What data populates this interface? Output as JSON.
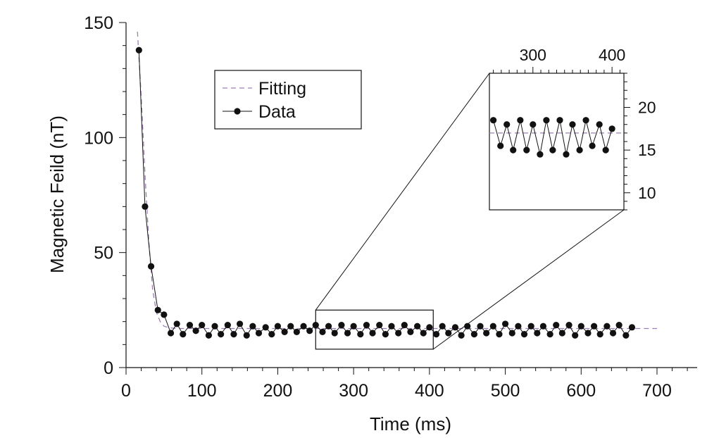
{
  "chart_data": [
    {
      "type": "line",
      "xlabel": "Time (ms)",
      "ylabel": "Magnetic Feild (nT)",
      "xlim": [
        0,
        700
      ],
      "ylim": [
        0,
        150
      ],
      "xticks": [
        0,
        100,
        200,
        300,
        400,
        500,
        600,
        700
      ],
      "yticks": [
        0,
        50,
        100,
        150
      ],
      "xtick_labels": [
        "0",
        "100",
        "200",
        "300",
        "400",
        "500",
        "600",
        "700"
      ],
      "ytick_labels": [
        "0",
        "50",
        "100",
        "150"
      ],
      "legend": {
        "placement": "top-center",
        "entries": [
          {
            "label": "Fitting",
            "style": "dashed",
            "color": "#9b7fb2"
          },
          {
            "label": "Data",
            "style": "line-marker",
            "color": "#111111"
          }
        ]
      },
      "series": [
        {
          "name": "Fitting",
          "style": "dashed",
          "color": "#9b7fb2",
          "x": [
            15,
            20,
            25,
            30,
            35,
            40,
            45,
            50,
            55,
            60,
            70,
            100,
            200,
            300,
            400,
            500,
            600,
            700
          ],
          "y": [
            146,
            118,
            84,
            55,
            34,
            24,
            20,
            18,
            17.5,
            17.2,
            17,
            17,
            17,
            17,
            17,
            17,
            17,
            17
          ]
        },
        {
          "name": "Data",
          "style": "line-marker",
          "color": "#111111",
          "x": [
            17,
            25,
            33,
            42,
            50,
            59,
            67,
            75,
            84,
            92,
            100,
            109,
            117,
            125,
            134,
            142,
            150,
            159,
            167,
            175,
            184,
            192,
            200,
            209,
            217,
            225,
            234,
            242,
            250,
            259,
            267,
            275,
            284,
            292,
            300,
            309,
            317,
            325,
            334,
            342,
            350,
            359,
            367,
            375,
            384,
            392,
            400,
            409,
            417,
            425,
            434,
            442,
            450,
            459,
            467,
            475,
            484,
            492,
            500,
            509,
            517,
            525,
            534,
            542,
            550,
            559,
            567,
            575,
            584,
            592,
            600,
            609,
            617,
            625,
            634,
            642,
            650,
            659,
            667
          ],
          "y": [
            138,
            70,
            44,
            25,
            23,
            15,
            19,
            14.5,
            18.5,
            16,
            18.5,
            14,
            18,
            14.5,
            18.5,
            14.5,
            19,
            14,
            18,
            15,
            17.5,
            14.5,
            18,
            15.5,
            18,
            15.5,
            18,
            16,
            18.5,
            15.5,
            18,
            15,
            18.5,
            15,
            18,
            14.5,
            18.5,
            15,
            18.5,
            14.5,
            18,
            15,
            18.5,
            15.5,
            18,
            15,
            17.5,
            14.5,
            18,
            15,
            17.5,
            14,
            18,
            14.5,
            18,
            15,
            18,
            14.5,
            19,
            15,
            18,
            14.5,
            18,
            15,
            18,
            14.5,
            18.5,
            15,
            18.5,
            14,
            18,
            15,
            18,
            14.5,
            18,
            15,
            18.5,
            14,
            17.5
          ]
        }
      ],
      "inset_region": {
        "x": [
          250,
          405
        ],
        "y": [
          8,
          25
        ]
      }
    },
    {
      "type": "line",
      "xlim": [
        245,
        415
      ],
      "ylim": [
        8,
        24
      ],
      "xticks": [
        300,
        400
      ],
      "yticks": [
        10,
        15,
        20
      ],
      "xtick_labels": [
        "300",
        "400"
      ],
      "ytick_labels": [
        "10",
        "15",
        "20"
      ],
      "series": [
        {
          "name": "Fitting",
          "style": "dashed",
          "color": "#9b7fb2",
          "x": [
            245,
            415
          ],
          "y": [
            17,
            17
          ]
        },
        {
          "name": "Data",
          "style": "line-marker",
          "color": "#111111",
          "x": [
            250,
            259,
            267,
            275,
            284,
            292,
            300,
            309,
            317,
            325,
            334,
            342,
            350,
            359,
            367,
            375,
            384,
            392,
            400
          ],
          "y": [
            18.5,
            15.5,
            18,
            15,
            18.5,
            15,
            18,
            14.5,
            18.5,
            15,
            18.5,
            14.5,
            18,
            15,
            18.5,
            15.5,
            18,
            15,
            17.5
          ]
        }
      ]
    }
  ]
}
